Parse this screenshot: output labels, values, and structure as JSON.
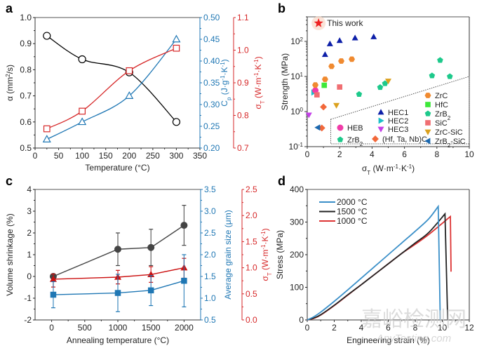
{
  "watermark": {
    "line1": "嘉峪检测网",
    "line2": "AnyTesting.com"
  },
  "chart_data": [
    {
      "panel": "a",
      "type": "line",
      "xlabel": "Temperature (°C)",
      "xlim": [
        0,
        350
      ],
      "xticks": [
        0,
        50,
        100,
        150,
        200,
        250,
        300,
        350
      ],
      "axes": [
        {
          "id": "left",
          "label": "α (mm²/s)",
          "label_parts": [
            "α (mm",
            "2",
            "/s)"
          ],
          "ylim": [
            0.5,
            1.0
          ],
          "ticks": [
            "0.5",
            "0.6",
            "0.7",
            "0.8",
            "0.9",
            "1.0"
          ],
          "color": "#000000"
        },
        {
          "id": "right1",
          "label": "Cp (J·g⁻¹·K⁻¹)",
          "label_parts": [
            "C",
            "p",
            " (J·g",
            "-1",
            "·K",
            "-1",
            ")"
          ],
          "ylim": [
            0.2,
            0.5
          ],
          "ticks": [
            "0.20",
            "0.25",
            "0.30",
            "0.35",
            "0.40",
            "0.45",
            "0.50"
          ],
          "color": "#1f77b4"
        },
        {
          "id": "right2",
          "label": "σT (W·m⁻¹·K⁻¹)",
          "label_parts": [
            "σ",
            "T",
            " (W·m",
            "-1",
            "·K",
            "-1",
            ")"
          ],
          "ylim": [
            0.7,
            1.1
          ],
          "ticks": [
            "0.7",
            "0.8",
            "0.9",
            "1.0",
            "1.1"
          ],
          "color": "#d62728"
        }
      ],
      "series": [
        {
          "name": "α",
          "axis": "left",
          "marker": "circle",
          "color": "#000000",
          "x": [
            25,
            100,
            200,
            300
          ],
          "values": [
            0.93,
            0.84,
            0.79,
            0.6
          ]
        },
        {
          "name": "Cp",
          "axis": "right1",
          "marker": "triangle",
          "color": "#1f77b4",
          "x": [
            25,
            100,
            200,
            300
          ],
          "values": [
            0.22,
            0.26,
            0.32,
            0.45
          ]
        },
        {
          "name": "σT",
          "axis": "right2",
          "marker": "square",
          "color": "#d62728",
          "x": [
            25,
            100,
            200,
            300
          ],
          "values": [
            0.759,
            0.813,
            0.937,
            1.006
          ]
        }
      ]
    },
    {
      "panel": "b",
      "type": "scatter",
      "xlabel": "σT (W·m⁻¹·K⁻¹)",
      "xlabel_parts": [
        "σ",
        "T",
        " (W·m",
        "-1",
        "·K",
        "-1",
        ")"
      ],
      "ylabel": "Strength (MPa)",
      "xlim": [
        0,
        10
      ],
      "xticks": [
        "0",
        "2",
        "4",
        "6",
        "8",
        "10"
      ],
      "yscale": "log",
      "ylim": [
        0.1,
        500
      ],
      "yticks": [
        {
          "base": "10",
          "exp": "-1"
        },
        {
          "base": "10",
          "exp": "0"
        },
        {
          "base": "10",
          "exp": "1"
        },
        {
          "base": "10",
          "exp": "2"
        }
      ],
      "annotation": "This work",
      "series": [
        {
          "name": "This work",
          "marker": "star",
          "color": "#ee2222",
          "points": [
            [
              0.7,
              330
            ]
          ]
        },
        {
          "name": "HEC1",
          "marker": "triangle-up",
          "color": "#0d1fa8",
          "points": [
            [
              1.1,
              42
            ],
            [
              1.4,
              85
            ],
            [
              2.0,
              105
            ],
            [
              2.95,
              125
            ],
            [
              4.1,
              135
            ]
          ]
        },
        {
          "name": "HEC2",
          "marker": "triangle-right",
          "color": "#1bbfc8",
          "points": [
            [
              0.4,
              3.5
            ]
          ]
        },
        {
          "name": "HEC3",
          "marker": "triangle-down",
          "color": "#c43fe8",
          "points": [
            [
              0.1,
              0.8
            ]
          ]
        },
        {
          "name": "HEB",
          "marker": "circle",
          "color": "#f03ca8",
          "points": [
            [
              0.5,
              4.0
            ]
          ]
        },
        {
          "name": "ZrB2 (HE)",
          "marker": "pentagon",
          "color": "#1dc98b",
          "points": []
        },
        {
          "name": "(Hf, Ta, Nb)C",
          "marker": "diamond",
          "color": "#f2683a",
          "points": [
            [
              1.0,
              1.35
            ],
            [
              0.9,
              0.34
            ]
          ]
        },
        {
          "name": "ZrC",
          "marker": "hexagon",
          "color": "#f08a30",
          "points": [
            [
              0.5,
              5.7
            ],
            [
              1.1,
              8.3
            ],
            [
              1.5,
              19.5
            ],
            [
              2.1,
              27.5
            ],
            [
              2.75,
              31
            ]
          ]
        },
        {
          "name": "HfC",
          "marker": "square",
          "color": "#3ee83a",
          "points": [
            [
              1.05,
              5.6
            ]
          ]
        },
        {
          "name": "ZrB2",
          "marker": "pentagon",
          "color": "#1dc98b",
          "points": [
            [
              3.2,
              3.1
            ],
            [
              4.5,
              4.9
            ],
            [
              4.8,
              6.3
            ],
            [
              7.7,
              10.5
            ],
            [
              8.2,
              29
            ],
            [
              8.8,
              10
            ]
          ]
        },
        {
          "name": "SiC",
          "marker": "square",
          "color": "#f06e72",
          "points": [
            [
              0.6,
              3.0
            ],
            [
              2.0,
              5.0
            ]
          ]
        },
        {
          "name": "ZrC-SiC",
          "marker": "triangle-down",
          "color": "#dba11e",
          "points": [
            [
              1.8,
              1.5
            ],
            [
              5.0,
              7.4
            ]
          ]
        },
        {
          "name": "ZrB2-SiC",
          "marker": "triangle-left",
          "color": "#1a68b0",
          "points": [
            [
              0.65,
              0.35
            ]
          ]
        }
      ],
      "legend_left": [
        {
          "label": "HEB",
          "marker": "circle",
          "color": "#f03ca8"
        },
        {
          "label": "ZrB",
          "sub": "2",
          "marker": "pentagon",
          "color": "#1dc98b"
        }
      ],
      "legend_mid": [
        {
          "label": "HEC1",
          "marker": "triangle-up",
          "color": "#0d1fa8"
        },
        {
          "label": "HEC2",
          "marker": "triangle-right",
          "color": "#1bbfc8"
        },
        {
          "label": "HEC3",
          "marker": "triangle-down",
          "color": "#c43fe8"
        },
        {
          "label": "(Hf, Ta, Nb)C",
          "marker": "diamond",
          "color": "#f2683a"
        }
      ],
      "legend_right": [
        {
          "label": "ZrC",
          "marker": "hexagon",
          "color": "#f08a30"
        },
        {
          "label": "HfC",
          "marker": "square",
          "color": "#3ee83a"
        },
        {
          "label": "ZrB",
          "sub": "2",
          "marker": "pentagon",
          "color": "#1dc98b"
        },
        {
          "label": "SiC",
          "marker": "square",
          "color": "#f06e72"
        },
        {
          "label": "ZrC-SiC",
          "marker": "triangle-down",
          "color": "#dba11e"
        },
        {
          "label": "ZrB",
          "sub": "2",
          "tail": "-SiC",
          "marker": "triangle-left",
          "color": "#1a68b0"
        }
      ]
    },
    {
      "panel": "c",
      "type": "line",
      "xlabel": "Annealing temperature (°C)",
      "xlim": [
        -250,
        2250
      ],
      "xticks": [
        "0",
        "500",
        "1000",
        "1500",
        "2000"
      ],
      "axes": [
        {
          "id": "left",
          "label": "Volume shrinkage (%)",
          "ylim": [
            -2,
            4
          ],
          "ticks": [
            "-2",
            "-1",
            "0",
            "1",
            "2",
            "3",
            "4"
          ],
          "color": "#000000"
        },
        {
          "id": "right1",
          "label": "Average grain size (μm)",
          "ylim": [
            0.5,
            3.5
          ],
          "ticks": [
            "0.5",
            "1.0",
            "1.5",
            "2.0",
            "2.5",
            "3.0",
            "3.5"
          ],
          "color": "#1f77b4"
        },
        {
          "id": "right2",
          "label": "σT (W·m⁻¹·K⁻¹)",
          "label_parts": [
            "σ",
            "T",
            " (W·m",
            "-1",
            "·K",
            "-1",
            ")"
          ],
          "ylim": [
            0.0,
            2.5
          ],
          "ticks": [
            "0.0",
            "0.5",
            "1.0",
            "1.5",
            "2.0",
            "2.5"
          ],
          "color": "#d62728"
        }
      ],
      "series": [
        {
          "name": "Volume shrinkage",
          "axis": "left",
          "marker": "circle",
          "color": "#444444",
          "x": [
            25,
            1000,
            1500,
            2000
          ],
          "values": [
            0.0,
            1.25,
            1.33,
            2.35
          ],
          "err_low": [
            -0.1,
            0.5,
            0.5,
            1.43
          ],
          "err_high": [
            0.1,
            2.0,
            2.17,
            3.27
          ]
        },
        {
          "name": "σT",
          "axis": "right2",
          "marker": "triangle",
          "color": "#cc1111",
          "x": [
            25,
            1000,
            1500,
            2000
          ],
          "values": [
            0.78,
            0.82,
            0.87,
            1.0
          ],
          "err_low": [
            0.63,
            0.69,
            0.72,
            0.8
          ],
          "err_high": [
            0.88,
            0.95,
            1.02,
            1.18
          ]
        },
        {
          "name": "Average grain size",
          "axis": "right1",
          "marker": "square",
          "color": "#1f77b4",
          "x": [
            25,
            1000,
            1500,
            2000
          ],
          "values": [
            1.08,
            1.12,
            1.18,
            1.4
          ],
          "err_low": [
            0.78,
            0.69,
            0.83,
            0.8
          ],
          "err_high": [
            1.38,
            1.55,
            1.52,
            2.0
          ]
        }
      ]
    },
    {
      "panel": "d",
      "type": "line",
      "xlabel": "Engineering strain (%)",
      "ylabel": "Stress (MPa)",
      "xlim": [
        0,
        12
      ],
      "ylim": [
        0,
        400
      ],
      "xticks": [
        "0",
        "2",
        "4",
        "6",
        "8",
        "10",
        "12"
      ],
      "yticks": [
        "0",
        "100",
        "200",
        "300",
        "400"
      ],
      "series": [
        {
          "name": "2000 °C",
          "color": "#3a8fc8",
          "x": [
            0,
            0.5,
            1,
            2,
            3,
            4,
            5,
            6,
            7,
            8,
            9,
            9.7,
            9.85
          ],
          "values": [
            0,
            10,
            24,
            57,
            92,
            128,
            164,
            200,
            236,
            272,
            310,
            348,
            0
          ]
        },
        {
          "name": "1500 °C",
          "color": "#222222",
          "x": [
            0,
            0.5,
            1,
            2,
            3,
            4,
            5,
            6,
            7,
            8,
            9,
            10.2,
            10.4
          ],
          "values": [
            0,
            6,
            16,
            45,
            77,
            108,
            140,
            172,
            204,
            236,
            268,
            325,
            0
          ]
        },
        {
          "name": "1000 °C",
          "color": "#dd3333",
          "x": [
            0,
            0.5,
            1,
            2,
            3,
            4,
            5,
            6,
            7,
            8,
            9,
            10.6,
            10.65
          ],
          "values": [
            0,
            5,
            15,
            44,
            76,
            108,
            140,
            172,
            204,
            232,
            262,
            317,
            148
          ]
        }
      ],
      "legend": [
        "2000 °C",
        "1500 °C",
        "1000 °C"
      ]
    }
  ],
  "panel_labels": [
    "a",
    "b",
    "c",
    "d"
  ]
}
